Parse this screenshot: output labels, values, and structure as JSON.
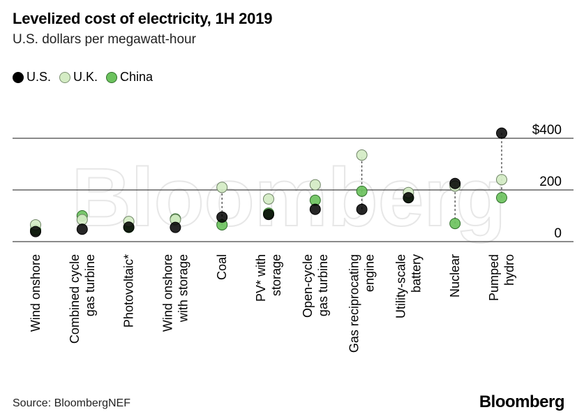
{
  "header": {
    "title": "Levelized cost of electricity, 1H 2019",
    "subtitle": "U.S. dollars per megawatt-hour"
  },
  "footer": {
    "source": "Source: BloombergNEF",
    "brand": "Bloomberg"
  },
  "watermark": "Bloomberg",
  "colors": {
    "us": "#000000",
    "uk": "#d4ecc4",
    "china": "#6cc25e",
    "grid": "#444444"
  },
  "chart_data": {
    "type": "scatter",
    "title": "Levelized cost of electricity, 1H 2019",
    "subtitle": "U.S. dollars per megawatt-hour",
    "categories": [
      "Wind onshore",
      "Combined cycle gas turbine",
      "Photovoltaic*",
      "Wind onshore with storage",
      "Coal",
      "PV* with storage",
      "Open-cycle gas turbine",
      "Gas reciprocating engine",
      "Utility-scale battery",
      "Nuclear",
      "Pumped hydro"
    ],
    "category_lines": [
      [
        "Wind onshore"
      ],
      [
        "Combined cycle",
        "gas turbine"
      ],
      [
        "Photovoltaic*"
      ],
      [
        "Wind onshore",
        "with storage"
      ],
      [
        "Coal"
      ],
      [
        "PV* with",
        "storage"
      ],
      [
        "Open-cycle",
        "gas turbine"
      ],
      [
        "Gas reciprocating",
        "engine"
      ],
      [
        "Utility-scale",
        "battery"
      ],
      [
        "Nuclear"
      ],
      [
        "Pumped",
        "hydro"
      ]
    ],
    "series": [
      {
        "name": "U.S.",
        "values": [
          39,
          48,
          56,
          55,
          95,
          105,
          125,
          125,
          170,
          225,
          420
        ]
      },
      {
        "name": "U.K.",
        "values": [
          65,
          85,
          78,
          85,
          210,
          165,
          220,
          335,
          190,
          215,
          240
        ]
      },
      {
        "name": "China",
        "values": [
          45,
          100,
          55,
          88,
          65,
          110,
          160,
          195,
          170,
          70,
          170
        ]
      }
    ],
    "ylim": [
      0,
      400
    ],
    "yticks": [
      {
        "value": 0,
        "label": "0"
      },
      {
        "value": 200,
        "label": "200"
      },
      {
        "value": 400,
        "label": "$400"
      }
    ],
    "connector_categories": [
      "Coal",
      "Gas reciprocating engine",
      "Nuclear",
      "Pumped hydro"
    ],
    "legend": "top-left",
    "grid": true
  }
}
